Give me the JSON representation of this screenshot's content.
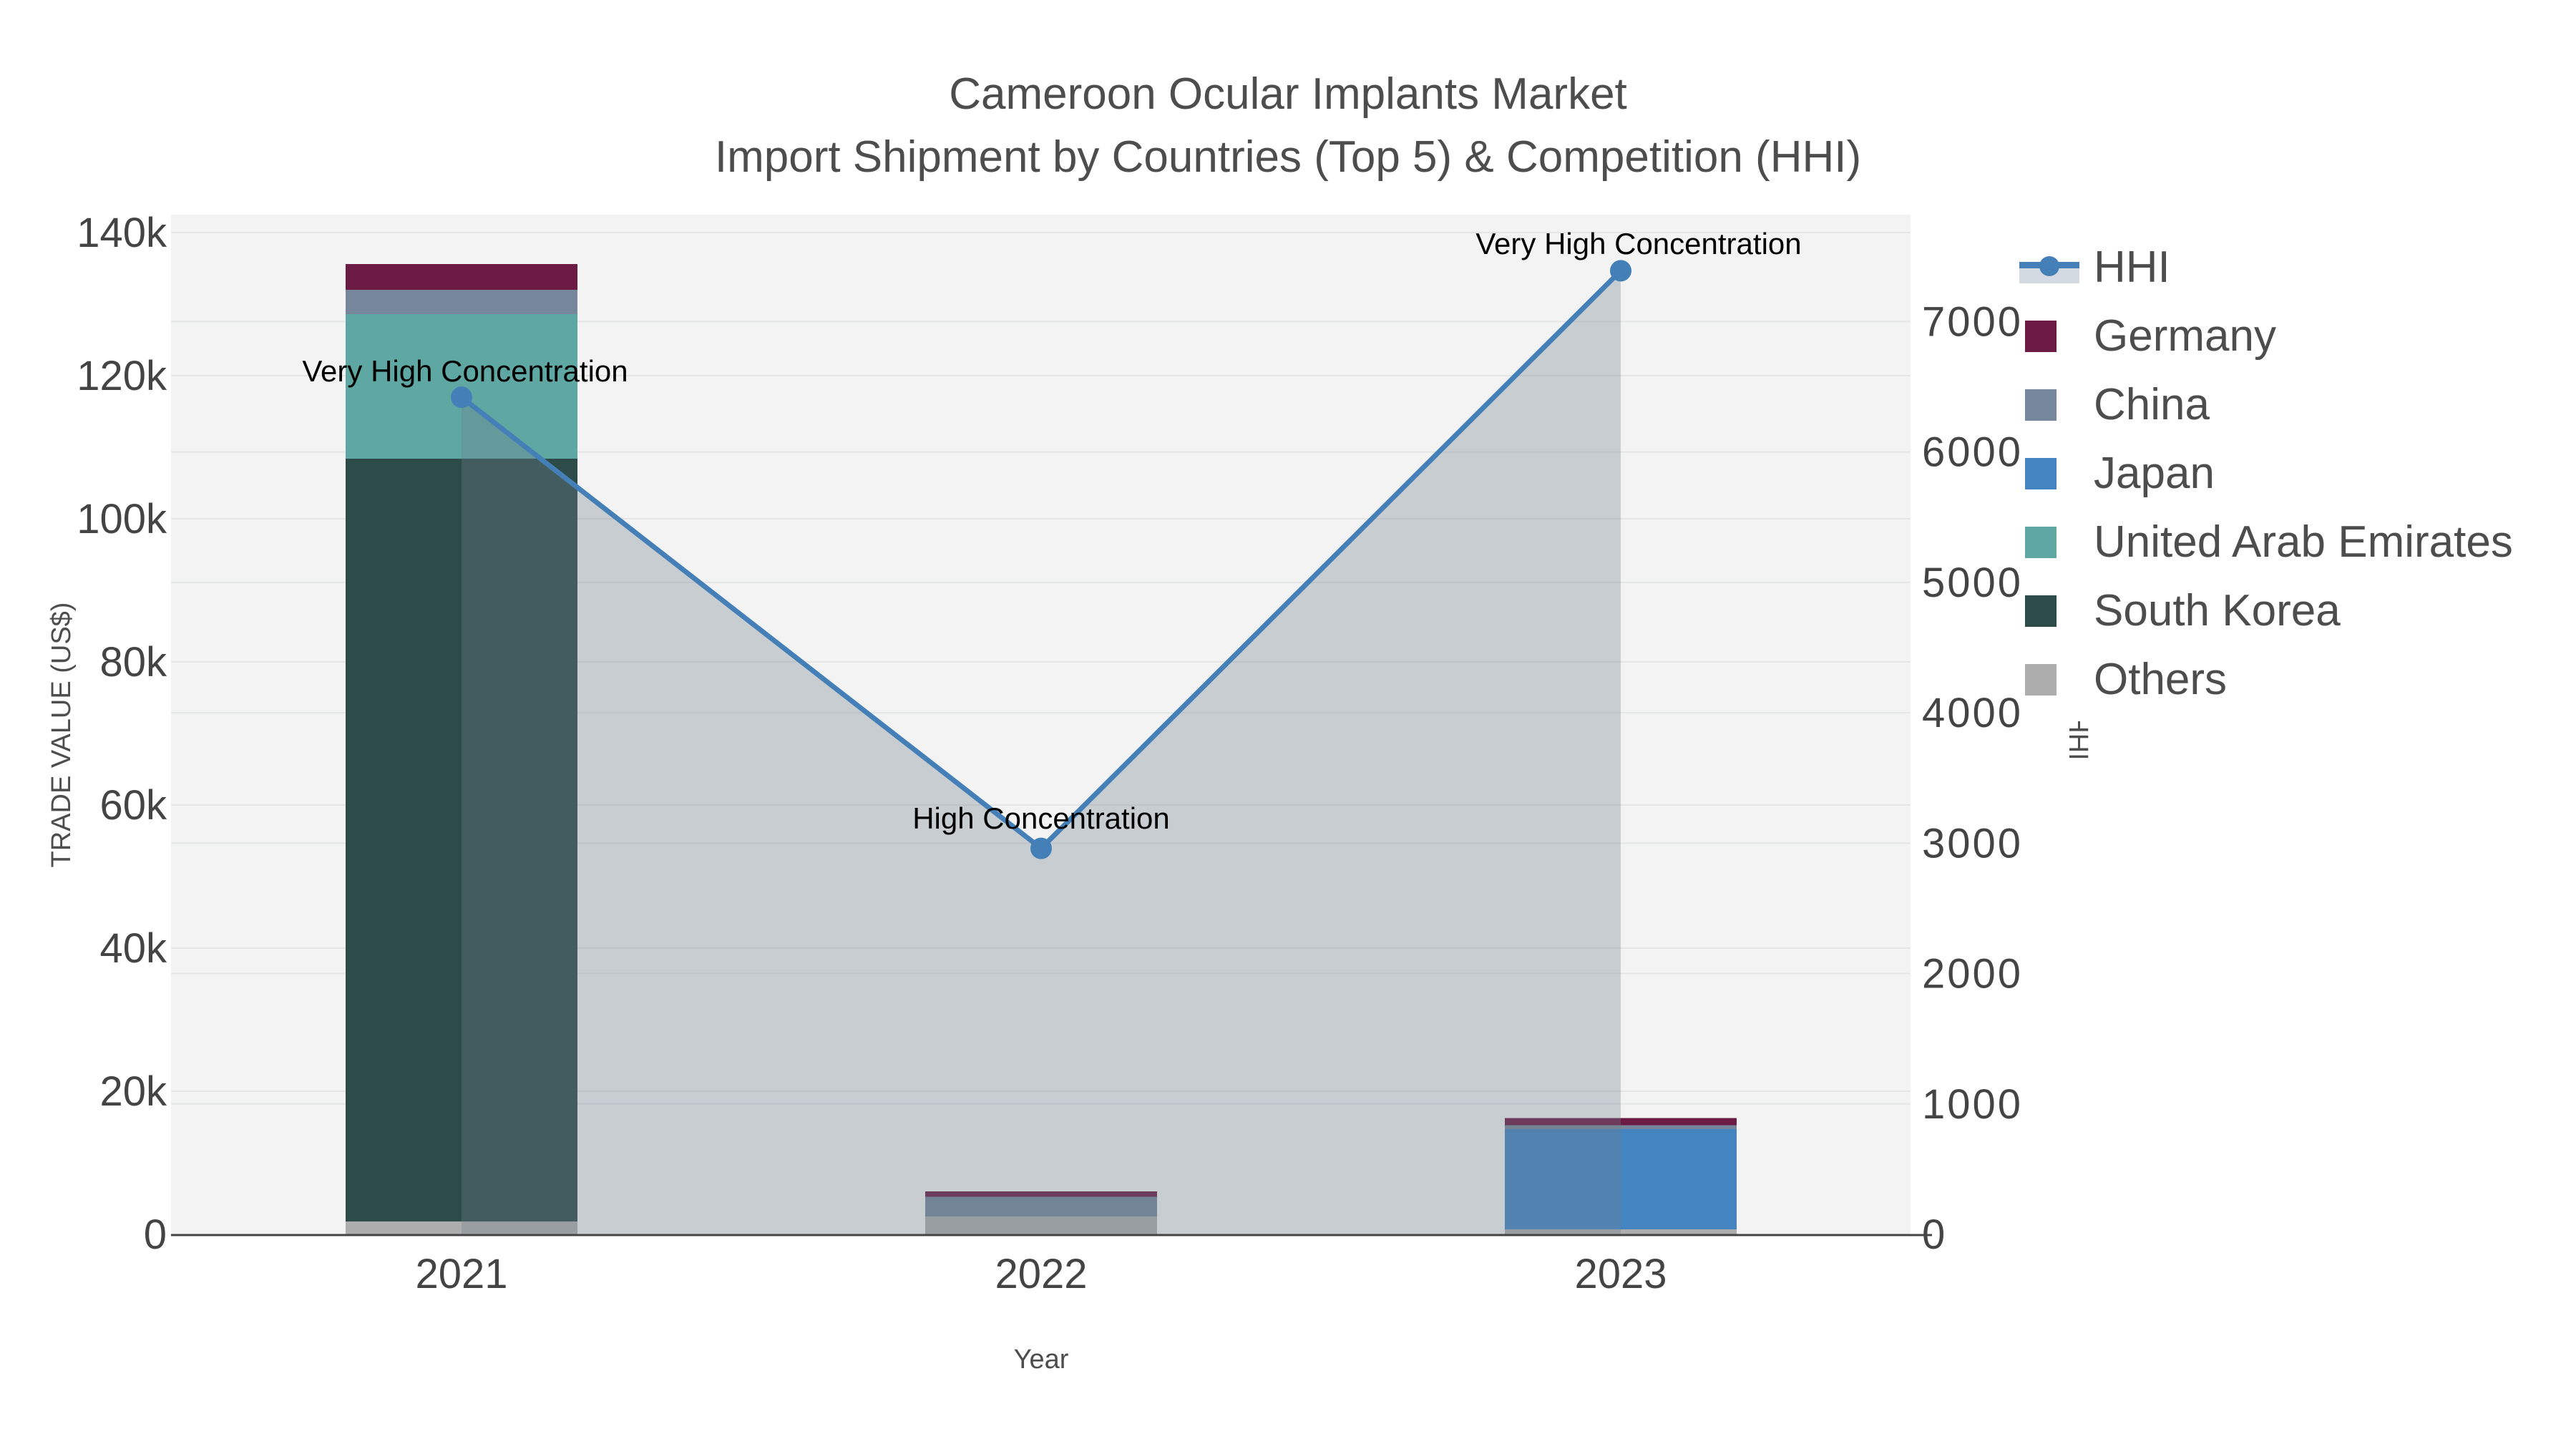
{
  "title": {
    "line1": "Cameroon Ocular Implants Market",
    "line2": "Import Shipment by Countries (Top 5) & Competition (HHI)"
  },
  "colors": {
    "background": "#ffffff",
    "plot_background": "#f2f3f2",
    "grid": "#e4e6e6",
    "axis_line": "#444444",
    "tick_text": "#444444",
    "title_text": "#4d4d4d",
    "annotation_text": "#000000",
    "hhi_line": "#4480b7",
    "hhi_fill": "rgba(112,128,144,0.33)",
    "germany": "#6c1b44",
    "china": "#76879b",
    "japan": "#4384c1",
    "united_arab_emirates": "#5fa7a2",
    "south_korea": "#2d4b48",
    "others": "#adadad"
  },
  "chart_data": {
    "type": "combo-stacked-bar-line",
    "categories": [
      "2021",
      "2022",
      "2023"
    ],
    "x": {
      "title": "Year"
    },
    "y_left": {
      "title": "TRADE VALUE (US$)",
      "tick_values": [
        0,
        20000,
        40000,
        60000,
        80000,
        100000,
        120000,
        140000
      ],
      "tick_labels": [
        "0",
        "20k",
        "40k",
        "60k",
        "80k",
        "100k",
        "120k",
        "140k"
      ],
      "range": [
        0,
        142500
      ],
      "grid": true
    },
    "y_right": {
      "title": "HHI",
      "tick_values": [
        0,
        1000,
        2000,
        3000,
        4000,
        5000,
        6000,
        7000
      ],
      "tick_labels": [
        "0",
        "1000",
        "2000",
        "3000",
        "4000",
        "5000",
        "6000",
        "7000"
      ],
      "range": [
        0,
        7820
      ],
      "grid": true
    },
    "bar_series": [
      {
        "name": "Germany",
        "color_key": "germany",
        "values": [
          3600,
          750,
          1000
        ]
      },
      {
        "name": "China",
        "color_key": "china",
        "values": [
          3400,
          2750,
          550
        ]
      },
      {
        "name": "Japan",
        "color_key": "japan",
        "values": [
          0,
          0,
          14000
        ]
      },
      {
        "name": "United Arab Emirates",
        "color_key": "united_arab_emirates",
        "values": [
          20200,
          0,
          0
        ]
      },
      {
        "name": "South Korea",
        "color_key": "south_korea",
        "values": [
          106600,
          0,
          0
        ]
      },
      {
        "name": "Others",
        "color_key": "others",
        "values": [
          1800,
          2500,
          700
        ]
      }
    ],
    "stack_order_bottom_to_top": [
      "Others",
      "South Korea",
      "United Arab Emirates",
      "Japan",
      "China",
      "Germany"
    ],
    "line_series": {
      "name": "HHI",
      "axis": "right",
      "values": [
        6420,
        2960,
        7390
      ],
      "fill_to_zero": true
    },
    "annotations": [
      {
        "category": "2021",
        "text": "Very High Concentration"
      },
      {
        "category": "2022",
        "text": "High Concentration"
      },
      {
        "category": "2023",
        "text": "Very High Concentration"
      }
    ],
    "legend_position": "right"
  },
  "legend": {
    "items": [
      {
        "id": "hhi",
        "label": "HHI",
        "glyph": "line"
      },
      {
        "id": "germany",
        "label": "Germany",
        "glyph": "square",
        "color_key": "germany"
      },
      {
        "id": "china",
        "label": "China",
        "glyph": "square",
        "color_key": "china"
      },
      {
        "id": "japan",
        "label": "Japan",
        "glyph": "square",
        "color_key": "japan"
      },
      {
        "id": "united-arab-emirates",
        "label": "United Arab Emirates",
        "glyph": "square",
        "color_key": "united_arab_emirates"
      },
      {
        "id": "south-korea",
        "label": "South Korea",
        "glyph": "square",
        "color_key": "south_korea"
      },
      {
        "id": "others",
        "label": "Others",
        "glyph": "square",
        "color_key": "others"
      }
    ]
  }
}
